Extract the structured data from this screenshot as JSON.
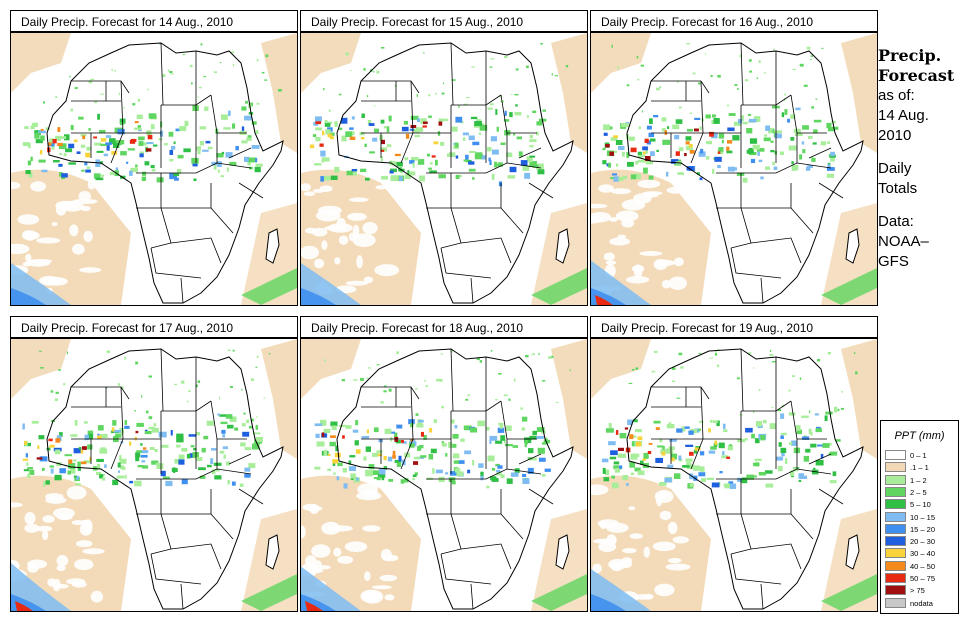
{
  "panels": [
    {
      "title": "Daily Precip. Forecast for  14 Aug., 2010",
      "west_africa_band": "heavy",
      "offshore": "light"
    },
    {
      "title": "Daily Precip. Forecast for  15 Aug., 2010",
      "west_africa_band": "heavy",
      "offshore": "light"
    },
    {
      "title": "Daily Precip. Forecast for  16 Aug., 2010",
      "west_africa_band": "heavy",
      "offshore": "moderate"
    },
    {
      "title": "Daily Precip. Forecast for  17 Aug., 2010",
      "west_africa_band": "heavy",
      "offshore": "heavy"
    },
    {
      "title": "Daily Precip. Forecast for  18 Aug., 2010",
      "west_africa_band": "heavy",
      "offshore": "moderate"
    },
    {
      "title": "Daily Precip. Forecast for  19 Aug., 2010",
      "west_africa_band": "heavy",
      "offshore": "light"
    }
  ],
  "sidebar": {
    "title_line1": "Precip.",
    "title_line2": "Forecast",
    "as_of": "as of:",
    "date_line1": "14 Aug.",
    "date_line2": "2010",
    "totals_line1": "Daily",
    "totals_line2": "Totals",
    "data_line1": "Data:",
    "data_line2": "NOAA–",
    "data_line3": "GFS"
  },
  "legend": {
    "title": "PPT (mm)",
    "items": [
      {
        "label": "0 – 1",
        "color": "#ffffff"
      },
      {
        "label": ".1 – 1",
        "color": "#f2d8b4"
      },
      {
        "label": "1 – 2",
        "color": "#a8ee9a"
      },
      {
        "label": "2 – 5",
        "color": "#5fd65f"
      },
      {
        "label": "5 – 10",
        "color": "#2fbf45"
      },
      {
        "label": "10 – 15",
        "color": "#7ebcf2"
      },
      {
        "label": "15 – 20",
        "color": "#3f8ff0"
      },
      {
        "label": "20 – 30",
        "color": "#1e5fe0"
      },
      {
        "label": "30 – 40",
        "color": "#f9d33a"
      },
      {
        "label": "40 – 50",
        "color": "#f58a1c"
      },
      {
        "label": "50 – 75",
        "color": "#e82a12"
      },
      {
        "label": "> 75",
        "color": "#a01010"
      },
      {
        "label": "nodata",
        "color": "#c8c8c8"
      }
    ]
  }
}
